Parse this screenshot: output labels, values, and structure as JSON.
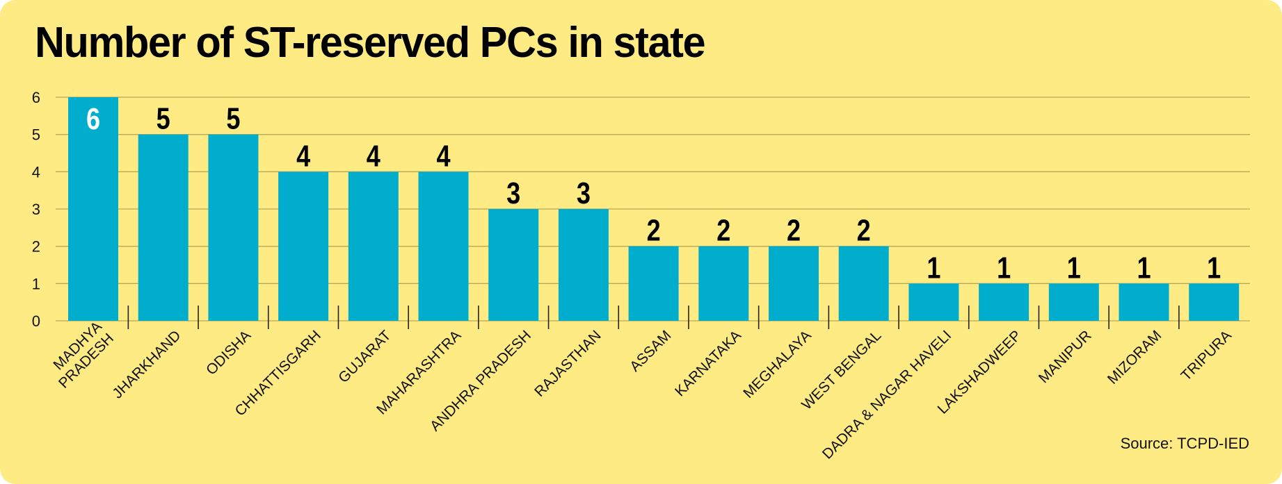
{
  "title": "Number of ST-reserved PCs in state",
  "source": "Source: TCPD-IED",
  "colors": {
    "background": "#feeb83",
    "bar": "#00adcd",
    "gridline": "#b8a85a",
    "text": "#000000",
    "inside_label": "#ffffff"
  },
  "chart_data": {
    "type": "bar",
    "title": "Number of ST-reserved PCs in state",
    "xlabel": "",
    "ylabel": "",
    "ylim": [
      0,
      6
    ],
    "yticks": [
      0,
      1,
      2,
      3,
      4,
      5,
      6
    ],
    "grid": true,
    "categories": [
      [
        "MADHYA",
        "PRADESH"
      ],
      [
        "JHARKHAND"
      ],
      [
        "ODISHA"
      ],
      [
        "CHHATTISGARH"
      ],
      [
        "GUJARAT"
      ],
      [
        "MAHARASHTRA"
      ],
      [
        "ANDHRA PRADESH"
      ],
      [
        "RAJASTHAN"
      ],
      [
        "ASSAM"
      ],
      [
        "KARNATAKA"
      ],
      [
        "MEGHALAYA"
      ],
      [
        "WEST BENGAL"
      ],
      [
        "DADRA & NAGAR HAVELI"
      ],
      [
        "LAKSHADWEEP"
      ],
      [
        "MANIPUR"
      ],
      [
        "MIZORAM"
      ],
      [
        "TRIPURA"
      ]
    ],
    "values": [
      6,
      5,
      5,
      4,
      4,
      4,
      3,
      3,
      2,
      2,
      2,
      2,
      1,
      1,
      1,
      1,
      1
    ]
  }
}
